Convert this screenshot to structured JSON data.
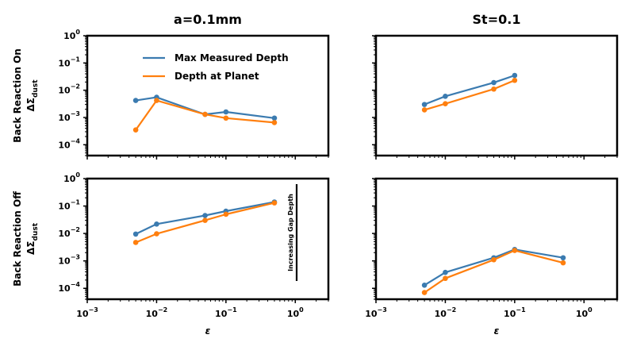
{
  "chart_data": [
    {
      "type": "line",
      "title": "a=0.1mm",
      "row_label": "Back Reaction On",
      "ylabel_main": "ΔΣ",
      "ylabel_sub": "dust",
      "xlabel": "",
      "xscale": "log",
      "yscale": "log",
      "xlim": [
        0.001,
        3
      ],
      "ylim": [
        4e-05,
        1
      ],
      "legend": "upper-center",
      "series": [
        {
          "name": "Max Measured Depth",
          "color": "#3b7bb0",
          "x": [
            0.005,
            0.01,
            0.05,
            0.1,
            0.5
          ],
          "y": [
            0.0042,
            0.0055,
            0.0013,
            0.0016,
            0.00095
          ]
        },
        {
          "name": "Depth at Planet",
          "color": "#ff7f0e",
          "x": [
            0.005,
            0.01,
            0.05,
            0.1,
            0.5
          ],
          "y": [
            0.00035,
            0.0042,
            0.0013,
            0.00095,
            0.00065
          ]
        }
      ]
    },
    {
      "type": "line",
      "title": "St=0.1",
      "xlabel": "",
      "xscale": "log",
      "yscale": "log",
      "xlim": [
        0.001,
        3
      ],
      "ylim": [
        4e-05,
        1
      ],
      "series": [
        {
          "name": "Max Measured Depth",
          "color": "#3b7bb0",
          "x": [
            0.005,
            0.01,
            0.05,
            0.1
          ],
          "y": [
            0.003,
            0.006,
            0.019,
            0.035
          ]
        },
        {
          "name": "Depth at Planet",
          "color": "#ff7f0e",
          "x": [
            0.005,
            0.01,
            0.05,
            0.1
          ],
          "y": [
            0.0019,
            0.0032,
            0.011,
            0.023
          ]
        }
      ]
    },
    {
      "type": "line",
      "title": "",
      "row_label": "Back Reaction Off",
      "ylabel_main": "ΔΣ",
      "ylabel_sub": "dust",
      "xlabel": "ε",
      "xscale": "log",
      "yscale": "log",
      "xlim": [
        0.001,
        3
      ],
      "ylim": [
        4e-05,
        1
      ],
      "annotation": "Increasing Gap Depth",
      "series": [
        {
          "name": "Max Measured Depth",
          "color": "#3b7bb0",
          "x": [
            0.005,
            0.01,
            0.05,
            0.1,
            0.5
          ],
          "y": [
            0.0095,
            0.022,
            0.045,
            0.065,
            0.14
          ]
        },
        {
          "name": "Depth at Planet",
          "color": "#ff7f0e",
          "x": [
            0.005,
            0.01,
            0.05,
            0.1,
            0.5
          ],
          "y": [
            0.0047,
            0.0097,
            0.03,
            0.05,
            0.13
          ]
        }
      ]
    },
    {
      "type": "line",
      "title": "",
      "xlabel": "ε",
      "xscale": "log",
      "yscale": "log",
      "xlim": [
        0.001,
        3
      ],
      "ylim": [
        4e-05,
        1
      ],
      "series": [
        {
          "name": "Max Measured Depth",
          "color": "#3b7bb0",
          "x": [
            0.005,
            0.01,
            0.05,
            0.1,
            0.5
          ],
          "y": [
            0.00013,
            0.00038,
            0.0013,
            0.0026,
            0.0013
          ]
        },
        {
          "name": "Depth at Planet",
          "color": "#ff7f0e",
          "x": [
            0.005,
            0.01,
            0.05,
            0.1,
            0.5
          ],
          "y": [
            7e-05,
            0.00023,
            0.0011,
            0.0024,
            0.00085
          ]
        }
      ]
    }
  ],
  "ticks": {
    "y_labels": [
      {
        "base": "10",
        "exp": "0"
      },
      {
        "base": "10",
        "exp": "−1"
      },
      {
        "base": "10",
        "exp": "−2"
      },
      {
        "base": "10",
        "exp": "−3"
      },
      {
        "base": "10",
        "exp": "−4"
      }
    ],
    "x_labels": [
      {
        "base": "10",
        "exp": "−3"
      },
      {
        "base": "10",
        "exp": "−2"
      },
      {
        "base": "10",
        "exp": "−1"
      },
      {
        "base": "10",
        "exp": "0"
      }
    ]
  }
}
